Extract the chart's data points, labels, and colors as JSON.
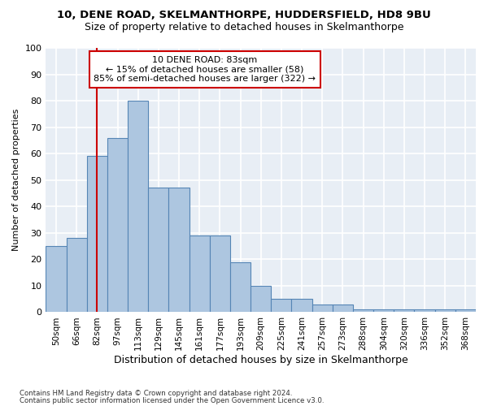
{
  "title_line1": "10, DENE ROAD, SKELMANTHORPE, HUDDERSFIELD, HD8 9BU",
  "title_line2": "Size of property relative to detached houses in Skelmanthorpe",
  "xlabel": "Distribution of detached houses by size in Skelmanthorpe",
  "ylabel": "Number of detached properties",
  "bar_values": [
    25,
    28,
    59,
    66,
    80,
    47,
    47,
    29,
    29,
    19,
    10,
    5,
    5,
    3,
    3,
    1,
    1,
    1,
    1,
    1,
    1
  ],
  "bin_labels": [
    "50sqm",
    "66sqm",
    "82sqm",
    "97sqm",
    "113sqm",
    "129sqm",
    "145sqm",
    "161sqm",
    "177sqm",
    "193sqm",
    "209sqm",
    "225sqm",
    "241sqm",
    "257sqm",
    "273sqm",
    "288sqm",
    "304sqm",
    "320sqm",
    "336sqm",
    "352sqm",
    "368sqm"
  ],
  "bar_color": "#adc6e0",
  "bar_edge_color": "#5585b5",
  "background_color": "#e8eef5",
  "grid_color": "#ffffff",
  "annotation_text": "10 DENE ROAD: 83sqm\n← 15% of detached houses are smaller (58)\n85% of semi-detached houses are larger (322) →",
  "vline_x": 2.0,
  "vline_color": "#cc0000",
  "box_color": "#cc0000",
  "footer_line1": "Contains HM Land Registry data © Crown copyright and database right 2024.",
  "footer_line2": "Contains public sector information licensed under the Open Government Licence v3.0.",
  "ylim": [
    0,
    100
  ],
  "yticks": [
    0,
    10,
    20,
    30,
    40,
    50,
    60,
    70,
    80,
    90,
    100
  ]
}
